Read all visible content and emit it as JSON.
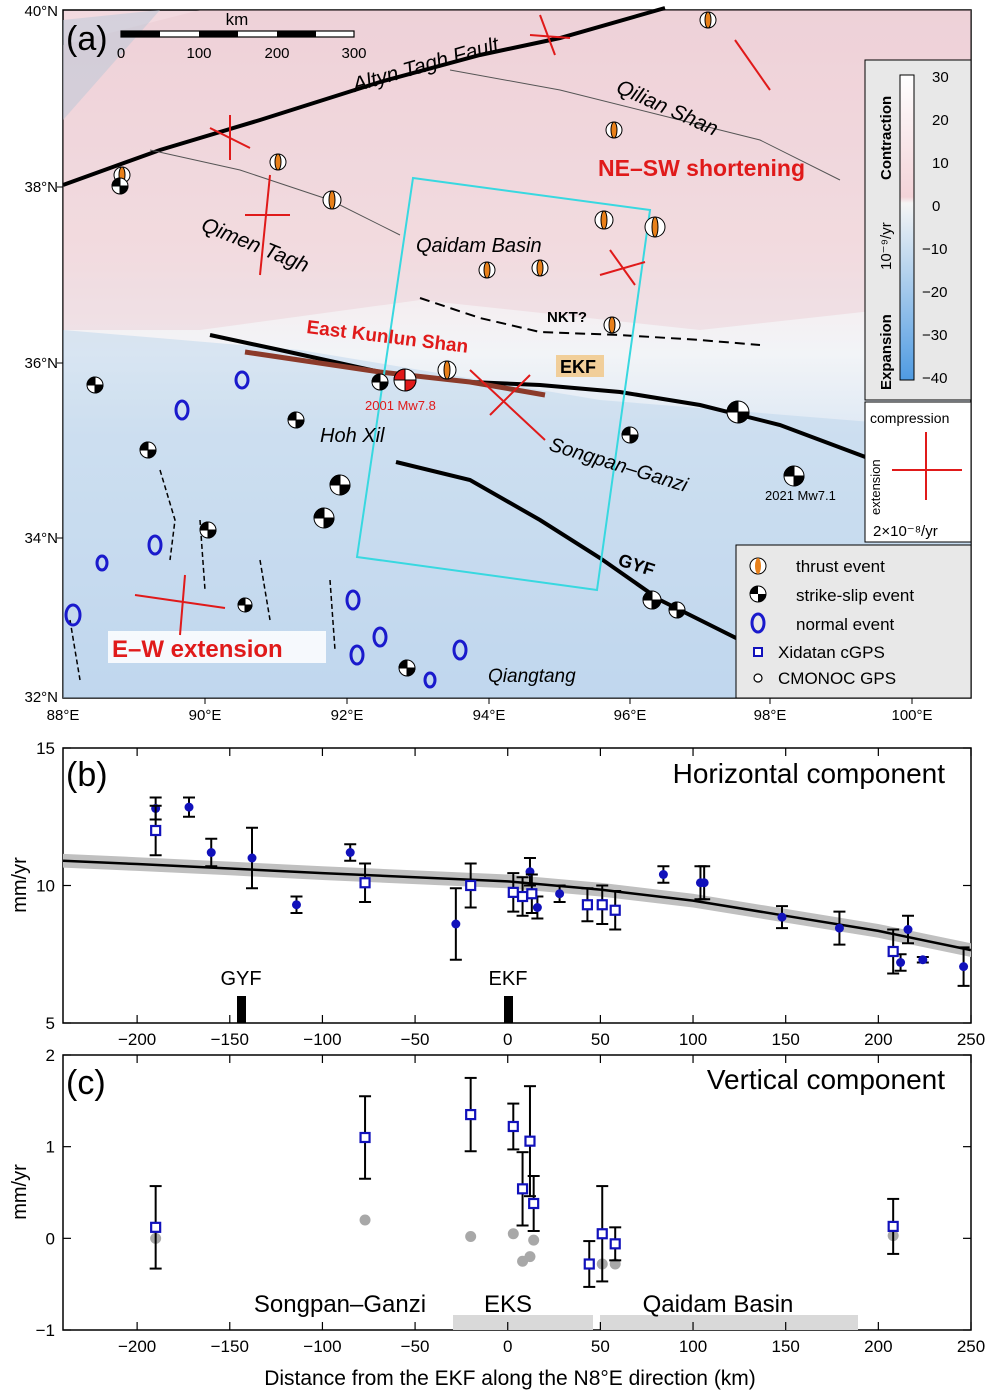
{
  "colors": {
    "red": "#e01a1a",
    "blue": "#1a1acc",
    "dark_blue_marker": "#1111bb",
    "orange": "#e8801a",
    "cyan": "#38d8e0",
    "fault_brown": "#8b3a2a",
    "model_gray": "#c0c0c0",
    "zone_gray": "#d9d9d9",
    "legend_bg": "#e8e8e8"
  },
  "panel_a": {
    "label": "(a)",
    "scale_bar": {
      "unit": "km",
      "ticks": [
        "0",
        "100",
        "200",
        "300"
      ]
    },
    "lat_labels": [
      "40°N",
      "38°N",
      "36°N",
      "34°N",
      "32°N"
    ],
    "lon_labels": [
      "88°E",
      "90°E",
      "92°E",
      "94°E",
      "96°E",
      "98°E",
      "100°E"
    ],
    "place_labels": {
      "altyn": "Altyn Tagh Fault",
      "qilian": "Qilian Shan",
      "qimen": "Qimen Tagh",
      "qaidam": "Qaidam Basin",
      "hoh_xil": "Hoh Xil",
      "songpan": "Songpan–Ganzi",
      "qiangtang": "Qiangtang"
    },
    "fault_labels": {
      "nkt": "NKT?",
      "ekf": "EKF",
      "gyf": "GYF"
    },
    "annotations": {
      "ne_sw": "NE–SW shortening",
      "ekshan": "East Kunlun Shan",
      "ew": "E–W extension"
    },
    "eq_labels": {
      "eq2001": "2001 Mw7.8",
      "eq2021": "2021 Mw7.1"
    },
    "colorbar": {
      "ticks": [
        "30",
        "20",
        "10",
        "0",
        "−10",
        "−20",
        "−30",
        "−40"
      ],
      "unit": "10⁻⁹/yr",
      "top_label": "Contraction",
      "bottom_label": "Expansion"
    },
    "strain_key": {
      "compression": "compression",
      "extension": "extension",
      "rate": "2×10⁻⁸/yr"
    },
    "legend": [
      "thrust event",
      "strike-slip event",
      "normal event",
      "Xidatan cGPS",
      "CMONOC GPS"
    ]
  },
  "panel_b": {
    "label": "(b)",
    "title": "Horizontal component",
    "ylabel": "mm/yr",
    "markers": {
      "gyf": "GYF",
      "ekf": "EKF"
    }
  },
  "panel_c": {
    "label": "(c)",
    "title": "Vertical component",
    "ylabel": "mm/yr",
    "zones": {
      "songpan": "Songpan–Ganzi",
      "eks": "EKS",
      "qaidam": "Qaidam Basin"
    },
    "xlabel": "Distance from the EKF along the N8°E direction (km)"
  },
  "chart_data": [
    {
      "type": "scatter",
      "panel": "b",
      "title": "Horizontal component",
      "xlabel": "",
      "ylabel": "mm/yr",
      "xlim": [
        -240,
        250
      ],
      "ylim": [
        5,
        15
      ],
      "x_ticks": [
        -200,
        -150,
        -100,
        -50,
        0,
        50,
        100,
        150,
        200,
        250
      ],
      "y_ticks": [
        5,
        10,
        15
      ],
      "series": [
        {
          "name": "CMONOC GPS",
          "marker": "filled-circle",
          "points": [
            {
              "x": -190,
              "y": 12.8,
              "err": 0.4
            },
            {
              "x": -172,
              "y": 12.85,
              "err": 0.35
            },
            {
              "x": -160,
              "y": 11.2,
              "err": 0.5
            },
            {
              "x": -138,
              "y": 11.0,
              "err": 1.1
            },
            {
              "x": -114,
              "y": 9.3,
              "err": 0.3
            },
            {
              "x": -85,
              "y": 11.2,
              "err": 0.3
            },
            {
              "x": -28,
              "y": 8.6,
              "err": 1.3
            },
            {
              "x": 12,
              "y": 10.5,
              "err": 0.5
            },
            {
              "x": 16,
              "y": 9.2,
              "err": 0.4
            },
            {
              "x": 28,
              "y": 9.7,
              "err": 0.3
            },
            {
              "x": 84,
              "y": 10.4,
              "err": 0.3
            },
            {
              "x": 104,
              "y": 10.1,
              "err": 0.6
            },
            {
              "x": 106,
              "y": 10.1,
              "err": 0.6
            },
            {
              "x": 148,
              "y": 8.85,
              "err": 0.4
            },
            {
              "x": 179,
              "y": 8.45,
              "err": 0.6
            },
            {
              "x": 212,
              "y": 7.2,
              "err": 0.3
            },
            {
              "x": 216,
              "y": 8.4,
              "err": 0.5
            },
            {
              "x": 224,
              "y": 7.3,
              "err": 0.1
            },
            {
              "x": 246,
              "y": 7.05,
              "err": 0.7
            }
          ]
        },
        {
          "name": "Xidatan cGPS",
          "marker": "open-square",
          "points": [
            {
              "x": -190,
              "y": 12.0,
              "err": 0.9
            },
            {
              "x": -77,
              "y": 10.1,
              "err": 0.7
            },
            {
              "x": -20,
              "y": 10.0,
              "err": 0.8
            },
            {
              "x": 3,
              "y": 9.75,
              "err": 0.7
            },
            {
              "x": 8,
              "y": 9.6,
              "err": 0.7
            },
            {
              "x": 13,
              "y": 9.7,
              "err": 0.7
            },
            {
              "x": 43,
              "y": 9.3,
              "err": 0.6
            },
            {
              "x": 51,
              "y": 9.3,
              "err": 0.7
            },
            {
              "x": 58,
              "y": 9.1,
              "err": 0.7
            },
            {
              "x": 208,
              "y": 7.6,
              "err": 0.8
            }
          ]
        },
        {
          "name": "model",
          "marker": "line",
          "x": [
            -240,
            -200,
            -150,
            -100,
            -50,
            0,
            50,
            100,
            150,
            200,
            250
          ],
          "y": [
            10.9,
            10.78,
            10.62,
            10.45,
            10.3,
            10.15,
            9.85,
            9.45,
            8.9,
            8.35,
            7.65
          ]
        }
      ]
    },
    {
      "type": "scatter",
      "panel": "c",
      "title": "Vertical component",
      "xlabel": "Distance from the EKF along the N8°E direction (km)",
      "ylabel": "mm/yr",
      "xlim": [
        -240,
        250
      ],
      "ylim": [
        -1,
        2
      ],
      "x_ticks": [
        -200,
        -150,
        -100,
        -50,
        0,
        50,
        100,
        150,
        200,
        250
      ],
      "y_ticks": [
        -1,
        0,
        1,
        2
      ],
      "series": [
        {
          "name": "Xidatan cGPS",
          "marker": "open-square",
          "points": [
            {
              "x": -190,
              "y": 0.12,
              "err": 0.45
            },
            {
              "x": -77,
              "y": 1.1,
              "err": 0.45
            },
            {
              "x": -20,
              "y": 1.35,
              "err": 0.4
            },
            {
              "x": 3,
              "y": 1.22,
              "err": 0.25
            },
            {
              "x": 8,
              "y": 0.54,
              "err": 0.4
            },
            {
              "x": 12,
              "y": 1.06,
              "err": 0.6
            },
            {
              "x": 14,
              "y": 0.38,
              "err": 0.3
            },
            {
              "x": 44,
              "y": -0.28,
              "err": 0.25
            },
            {
              "x": 51,
              "y": 0.05,
              "err": 0.52
            },
            {
              "x": 58,
              "y": -0.06,
              "err": 0.18
            },
            {
              "x": 208,
              "y": 0.13,
              "err": 0.3
            }
          ]
        },
        {
          "name": "model",
          "marker": "gray-circle",
          "points": [
            {
              "x": -190,
              "y": 0.0
            },
            {
              "x": -77,
              "y": 0.2
            },
            {
              "x": -20,
              "y": 0.02
            },
            {
              "x": 3,
              "y": 0.05
            },
            {
              "x": 8,
              "y": -0.25
            },
            {
              "x": 12,
              "y": -0.2
            },
            {
              "x": 14,
              "y": -0.02
            },
            {
              "x": 44,
              "y": -0.28
            },
            {
              "x": 51,
              "y": -0.28
            },
            {
              "x": 58,
              "y": -0.28
            },
            {
              "x": 208,
              "y": 0.03
            }
          ]
        }
      ]
    }
  ]
}
